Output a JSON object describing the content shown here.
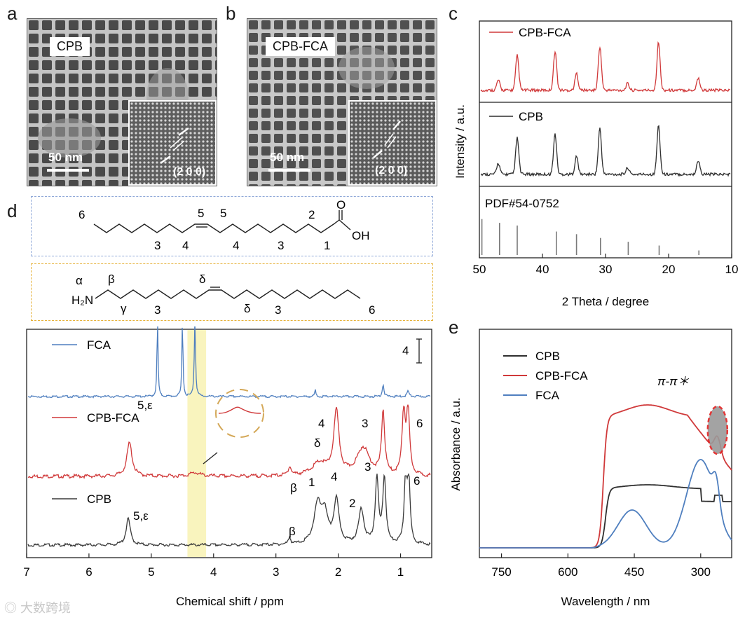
{
  "panels": {
    "a": {
      "letter": "a",
      "label": "CPB",
      "scale": "50 nm",
      "miller": "(2 0 0)"
    },
    "b": {
      "letter": "b",
      "label": "CPB-FCA",
      "scale": "50 nm",
      "miller": "(2 0 0)"
    },
    "c": {
      "letter": "c"
    },
    "d": {
      "letter": "d"
    },
    "e": {
      "letter": "e"
    }
  },
  "structures": {
    "fca_labels": [
      "6",
      "5",
      "5",
      "2",
      "3",
      "4",
      "4",
      "3",
      "1",
      "O",
      "OH"
    ],
    "amine_labels": [
      "α",
      "β",
      "H₂N",
      "γ",
      "3",
      "δ",
      "δ",
      "3",
      "6"
    ]
  },
  "chart_data": [
    {
      "type": "line",
      "id": "xrd",
      "xlabel": "2 Theta / degree",
      "ylabel": "Intensity / a.u.",
      "xlim": [
        50,
        10
      ],
      "xticks": [
        50,
        40,
        30,
        20,
        10
      ],
      "series": [
        {
          "name": "CPB-FCA",
          "color": "#d0393a",
          "peaks": [
            47.0,
            44.0,
            38.0,
            34.6,
            30.9,
            26.5,
            21.6,
            15.3
          ],
          "heights": [
            0.18,
            0.62,
            0.7,
            0.3,
            0.78,
            0.12,
            0.86,
            0.22
          ]
        },
        {
          "name": "CPB",
          "color": "#2f2f2f",
          "peaks": [
            47.0,
            44.0,
            38.0,
            34.6,
            30.9,
            26.5,
            21.6,
            15.3
          ],
          "heights": [
            0.2,
            0.65,
            0.72,
            0.32,
            0.82,
            0.12,
            0.87,
            0.25
          ]
        }
      ],
      "reference": {
        "name": "PDF#54-0752",
        "color": "#7a7a7a",
        "positions": [
          49.6,
          46.8,
          44.0,
          37.8,
          34.6,
          30.8,
          26.4,
          21.5,
          15.2
        ],
        "heights": [
          0.95,
          0.85,
          0.78,
          0.62,
          0.55,
          0.45,
          0.35,
          0.25,
          0.12
        ]
      }
    },
    {
      "type": "line",
      "id": "nmr",
      "xlabel": "Chemical shift / ppm",
      "xlim": [
        7,
        0.5
      ],
      "xticks": [
        7,
        6,
        5,
        4,
        3,
        2,
        1
      ],
      "highlight_ppm": [
        4.12,
        4.42
      ],
      "scale_label": "4",
      "series": [
        {
          "name": "FCA",
          "color": "#4f7fbf"
        },
        {
          "name": "CPB-FCA",
          "color": "#d0393a"
        },
        {
          "name": "CPB",
          "color": "#3a3a3a"
        }
      ],
      "peak_labels": {
        "cpbfca": [
          "5,ε",
          "β",
          "4",
          "δ",
          "3",
          "6"
        ],
        "cpb": [
          "5,ε",
          "β",
          "1",
          "4",
          "2",
          "3",
          "6"
        ]
      }
    },
    {
      "type": "line",
      "id": "uvvis",
      "xlabel": "Wavelength / nm",
      "ylabel": "Absorbance / a.u.",
      "xlim": [
        800,
        230
      ],
      "xticks": [
        750,
        600,
        450,
        300
      ],
      "annotation": "π-π＊",
      "series": [
        {
          "name": "CPB",
          "color": "#2f2f2f"
        },
        {
          "name": "CPB-FCA",
          "color": "#d0393a"
        },
        {
          "name": "FCA",
          "color": "#4f7fbf"
        }
      ]
    }
  ],
  "watermark": "大数跨境"
}
